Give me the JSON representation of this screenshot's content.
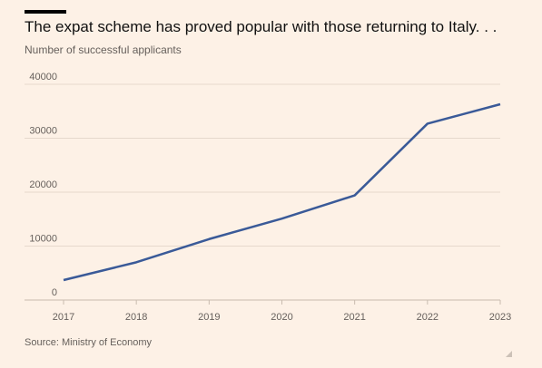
{
  "header": {
    "title": "The expat scheme has proved popular with those returning to Italy. . .",
    "subtitle": "Number of successful applicants"
  },
  "footer": {
    "source": "Source: Ministry of Economy"
  },
  "colors": {
    "background": "#fdf1e6",
    "line": "#3a5a98",
    "grid": "#e6d9cc",
    "text": "#66605c"
  },
  "chart_data": {
    "type": "line",
    "title": "The expat scheme has proved popular with those returning to Italy. . .",
    "ylabel": "Number of successful applicants",
    "x": [
      "2017",
      "2018",
      "2019",
      "2020",
      "2021",
      "2022",
      "2023"
    ],
    "series": [
      {
        "values": [
          3700,
          7000,
          11300,
          15100,
          19400,
          32700,
          36300
        ]
      }
    ],
    "yticks": [
      "0",
      "10000",
      "20000",
      "30000",
      "40000"
    ],
    "ylim": [
      0,
      40000
    ],
    "grid": true,
    "legend": "none"
  }
}
